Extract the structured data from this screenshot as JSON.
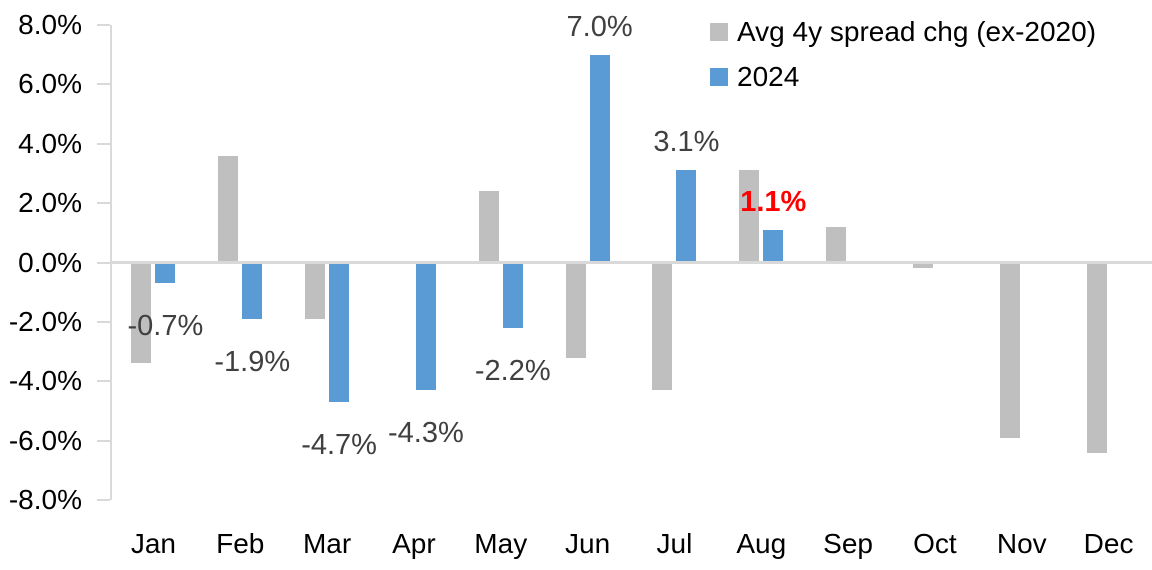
{
  "background_color": "#FFFFFF",
  "chart_data": {
    "type": "bar",
    "title": "",
    "categories": [
      "Jan",
      "Feb",
      "Mar",
      "Apr",
      "May",
      "Jun",
      "Jul",
      "Aug",
      "Sep",
      "Oct",
      "Nov",
      "Dec"
    ],
    "series": [
      {
        "name": "Avg 4y spread chg (ex-2020)",
        "color": "#BFBFBF",
        "values": [
          -3.4,
          3.6,
          -1.9,
          0.0,
          2.4,
          -3.2,
          -4.3,
          3.1,
          1.2,
          -0.2,
          -5.9,
          -6.4
        ]
      },
      {
        "name": "2024",
        "color": "#5B9BD5",
        "values": [
          -0.7,
          -1.9,
          -4.7,
          -4.3,
          -2.2,
          7.0,
          3.1,
          1.1,
          null,
          null,
          null,
          null
        ]
      }
    ],
    "data_labels": [
      {
        "series_index": 1,
        "category": "Jan",
        "text": "-0.7%",
        "color": "#404040",
        "bold": false
      },
      {
        "series_index": 1,
        "category": "Feb",
        "text": "-1.9%",
        "color": "#404040",
        "bold": false
      },
      {
        "series_index": 1,
        "category": "Mar",
        "text": "-4.7%",
        "color": "#404040",
        "bold": false
      },
      {
        "series_index": 1,
        "category": "Apr",
        "text": "-4.3%",
        "color": "#404040",
        "bold": false
      },
      {
        "series_index": 1,
        "category": "May",
        "text": "-2.2%",
        "color": "#404040",
        "bold": false
      },
      {
        "series_index": 1,
        "category": "Jun",
        "text": "7.0%",
        "color": "#404040",
        "bold": false
      },
      {
        "series_index": 1,
        "category": "Jul",
        "text": "3.1%",
        "color": "#404040",
        "bold": false
      },
      {
        "series_index": 1,
        "category": "Aug",
        "text": "1.1%",
        "color": "#FF0000",
        "bold": true
      }
    ],
    "y_axis": {
      "min": -8,
      "max": 8,
      "tick_step": 2,
      "tick_labels": [
        "8.0%",
        "6.0%",
        "4.0%",
        "2.0%",
        "0.0%",
        "-2.0%",
        "-4.0%",
        "-6.0%",
        "-8.0%"
      ],
      "format": "percent"
    },
    "x_axis": {
      "labels": [
        "Jan",
        "Feb",
        "Mar",
        "Apr",
        "May",
        "Jun",
        "Jul",
        "Aug",
        "Sep",
        "Oct",
        "Nov",
        "Dec"
      ]
    },
    "legend": {
      "position": "top-right",
      "entries": [
        "Avg 4y spread chg (ex-2020)",
        "2024"
      ]
    },
    "grid": false,
    "axis_color": "#D9D9D9",
    "label_text_color": "#404040",
    "axis_text_color": "#000000"
  }
}
